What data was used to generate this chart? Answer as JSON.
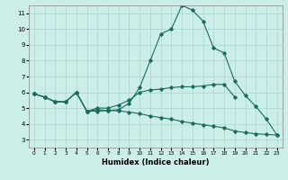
{
  "xlabel": "Humidex (Indice chaleur)",
  "bg_color": "#cceee8",
  "grid_color": "#aad4ce",
  "line_color": "#1a6b60",
  "xlim": [
    -0.5,
    23.5
  ],
  "ylim": [
    2.5,
    11.5
  ],
  "xticks": [
    0,
    1,
    2,
    3,
    4,
    5,
    6,
    7,
    8,
    9,
    10,
    11,
    12,
    13,
    14,
    15,
    16,
    17,
    18,
    19,
    20,
    21,
    22,
    23
  ],
  "yticks": [
    3,
    4,
    5,
    6,
    7,
    8,
    9,
    10,
    11
  ],
  "line1_x": [
    0,
    1,
    2,
    3,
    4,
    5,
    6,
    7,
    8,
    9,
    10,
    11,
    12,
    13,
    14,
    15,
    16,
    17,
    18,
    19,
    20,
    21,
    22,
    23
  ],
  "line1_y": [
    5.9,
    5.7,
    5.4,
    5.4,
    6.0,
    4.8,
    4.8,
    4.85,
    4.9,
    5.3,
    6.3,
    8.0,
    9.7,
    10.0,
    11.5,
    11.2,
    10.5,
    8.8,
    8.5,
    6.7,
    5.8,
    5.1,
    4.3,
    3.3
  ],
  "line2_x": [
    0,
    1,
    2,
    3,
    4,
    5,
    6,
    7,
    8,
    9,
    10,
    11,
    12,
    13,
    14,
    15,
    16,
    17,
    18,
    19,
    20,
    21,
    22,
    23
  ],
  "line2_y": [
    5.9,
    5.7,
    5.4,
    5.4,
    6.0,
    4.8,
    5.0,
    5.0,
    5.2,
    5.5,
    6.0,
    6.15,
    6.2,
    6.3,
    6.35,
    6.35,
    6.4,
    6.5,
    6.5,
    5.7,
    null,
    null,
    null,
    null
  ],
  "line3_x": [
    0,
    1,
    2,
    3,
    4,
    5,
    6,
    7,
    8,
    9,
    10,
    11,
    12,
    13,
    14,
    15,
    16,
    17,
    18,
    19,
    20,
    21,
    22,
    23
  ],
  "line3_y": [
    5.9,
    5.7,
    5.4,
    5.4,
    6.0,
    4.8,
    4.9,
    4.85,
    4.82,
    4.75,
    4.65,
    4.5,
    4.4,
    4.3,
    4.15,
    4.05,
    3.95,
    3.85,
    3.75,
    3.55,
    3.45,
    3.38,
    3.33,
    3.3
  ]
}
